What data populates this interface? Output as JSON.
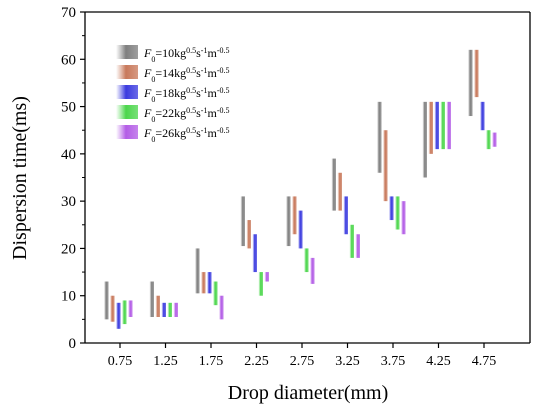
{
  "chart_data": {
    "type": "range-bar",
    "xlabel": "Drop diameter(mm)",
    "ylabel": "Dispersion time(ms)",
    "ylim": [
      0,
      70
    ],
    "yticks": [
      0,
      10,
      20,
      30,
      40,
      50,
      60,
      70
    ],
    "categories": [
      "0.75",
      "1.25",
      "1.75",
      "2.25",
      "2.75",
      "3.25",
      "3.75",
      "4.25",
      "4.75"
    ],
    "legend_position": "top-left",
    "series": [
      {
        "name_prefix": "F",
        "name_sub": "0",
        "name_rest": "=10kg",
        "sup1": "0.5",
        "mid": "s",
        "sup2": "-1",
        "unit": "m",
        "sup3": "-0.5",
        "color": "#7f7f7f",
        "ranges": [
          [
            5,
            13
          ],
          [
            5.5,
            13
          ],
          [
            10.5,
            20
          ],
          [
            20.5,
            31
          ],
          [
            20.5,
            31
          ],
          [
            28,
            39
          ],
          [
            36,
            51
          ],
          [
            35,
            51
          ],
          [
            48,
            62
          ]
        ]
      },
      {
        "name_prefix": "F",
        "name_sub": "0",
        "name_rest": "=14kg",
        "sup1": "0.5",
        "mid": "s",
        "sup2": "-1",
        "unit": "m",
        "sup3": "-0.5",
        "color": "#c8785a",
        "ranges": [
          [
            4.5,
            10
          ],
          [
            5.5,
            10
          ],
          [
            10.5,
            15
          ],
          [
            20,
            26
          ],
          [
            23,
            31
          ],
          [
            28,
            36
          ],
          [
            30,
            45
          ],
          [
            40,
            51
          ],
          [
            52,
            62
          ]
        ]
      },
      {
        "name_prefix": "F",
        "name_sub": "0",
        "name_rest": "=18kg",
        "sup1": "0.5",
        "mid": "s",
        "sup2": "-1",
        "unit": "m",
        "sup3": "-0.5",
        "color": "#3a3adf",
        "ranges": [
          [
            3,
            8.5
          ],
          [
            5.5,
            8.5
          ],
          [
            10.5,
            15
          ],
          [
            15,
            23
          ],
          [
            20,
            28
          ],
          [
            23,
            31
          ],
          [
            26,
            31
          ],
          [
            41,
            51
          ],
          [
            45,
            51
          ]
        ]
      },
      {
        "name_prefix": "F",
        "name_sub": "0",
        "name_rest": "=22kg",
        "sup1": "0.5",
        "mid": "s",
        "sup2": "-1",
        "unit": "m",
        "sup3": "-0.5",
        "color": "#4bd64b",
        "ranges": [
          [
            4,
            9
          ],
          [
            5.5,
            8.5
          ],
          [
            8,
            13
          ],
          [
            10,
            15
          ],
          [
            15,
            20
          ],
          [
            18,
            25
          ],
          [
            24,
            31
          ],
          [
            41,
            51
          ],
          [
            41,
            45
          ]
        ]
      },
      {
        "name_prefix": "F",
        "name_sub": "0",
        "name_rest": "=26kg",
        "sup1": "0.5",
        "mid": "s",
        "sup2": "-1",
        "unit": "m",
        "sup3": "-0.5",
        "color": "#b35ce6",
        "ranges": [
          [
            5.5,
            9
          ],
          [
            5.5,
            8.5
          ],
          [
            5,
            10
          ],
          [
            13,
            15
          ],
          [
            12.5,
            18
          ],
          [
            18,
            23
          ],
          [
            23,
            30
          ],
          [
            41,
            51
          ],
          [
            41.5,
            44.5
          ]
        ]
      }
    ]
  }
}
